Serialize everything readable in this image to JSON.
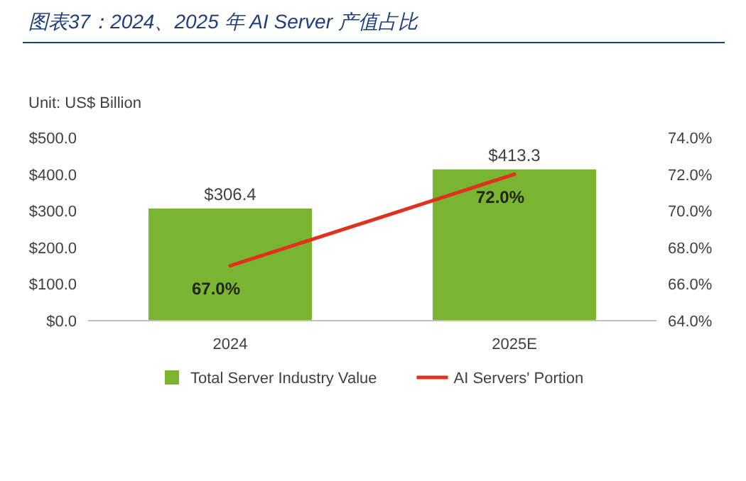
{
  "chart_data": {
    "type": "bar",
    "title": "图表37：2024、2025 年 AI Server 产值占比",
    "ylabel": "Unit: US$ Billion",
    "categories": [
      "2024",
      "2025E"
    ],
    "ylim": [
      0,
      500
    ],
    "yticks": [
      {
        "value": 0,
        "label": "$0.0"
      },
      {
        "value": 100,
        "label": "$100.0"
      },
      {
        "value": 200,
        "label": "$200.0"
      },
      {
        "value": 300,
        "label": "$300.0"
      },
      {
        "value": 400,
        "label": "$400.0"
      },
      {
        "value": 500,
        "label": "$500.0"
      }
    ],
    "y2lim": [
      64,
      74
    ],
    "y2ticks": [
      {
        "value": 64,
        "label": "64.0%"
      },
      {
        "value": 66,
        "label": "66.0%"
      },
      {
        "value": 68,
        "label": "68.0%"
      },
      {
        "value": 70,
        "label": "70.0%"
      },
      {
        "value": 72,
        "label": "72.0%"
      },
      {
        "value": 74,
        "label": "74.0%"
      }
    ],
    "legend": "bottom",
    "series": [
      {
        "name": "Total Server Industry Value",
        "color": "#7ab532",
        "values": [
          306.4,
          413.3
        ],
        "value_labels": [
          "$306.4",
          "$413.3"
        ]
      },
      {
        "name": "AI Servers' Portion",
        "type": "line",
        "axis": "y2",
        "color": "#e0301e",
        "values": [
          67.0,
          72.0
        ],
        "value_labels": [
          "67.0%",
          "72.0%"
        ]
      }
    ]
  }
}
